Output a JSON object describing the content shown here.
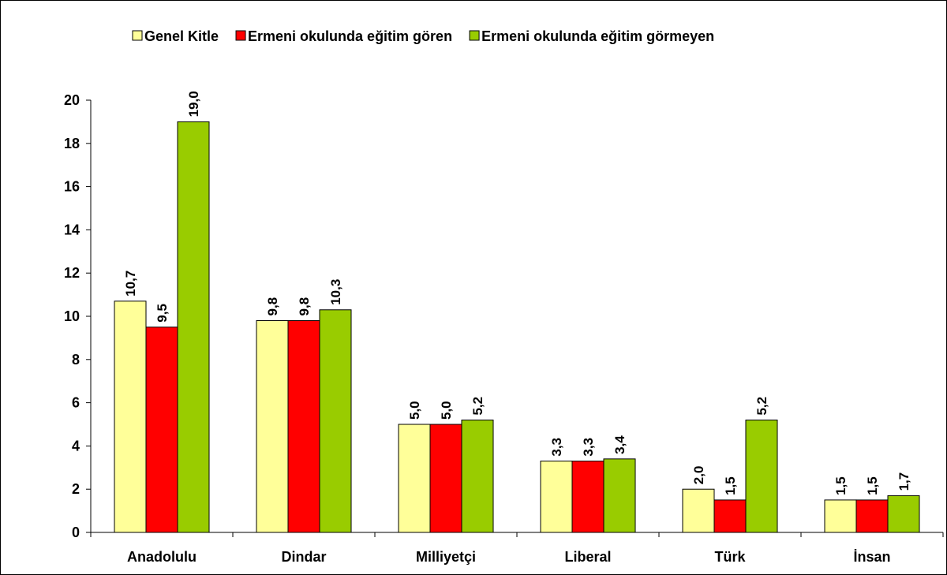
{
  "chart_data": {
    "type": "bar",
    "categories": [
      "Anadolulu",
      "Dindar",
      "Milliyetçi",
      "Liberal",
      "Türk",
      "İnsan"
    ],
    "series": [
      {
        "name": "Genel Kitle",
        "color": "#ffff99",
        "values": [
          10.7,
          9.8,
          5.0,
          3.3,
          2.0,
          1.5
        ],
        "value_labels": [
          "10,7",
          "9,8",
          "5,0",
          "3,3",
          "2,0",
          "1,5"
        ]
      },
      {
        "name": "Ermeni okulunda eğitim gören",
        "color": "#ff0000",
        "values": [
          9.5,
          9.8,
          5.0,
          3.3,
          1.5,
          1.5
        ],
        "value_labels": [
          "9,5",
          "9,8",
          "5,0",
          "3,3",
          "1,5",
          "1,5"
        ]
      },
      {
        "name": "Ermeni okulunda eğitim görmeyen",
        "color": "#99cc00",
        "values": [
          19.0,
          10.3,
          5.2,
          3.4,
          5.2,
          1.7
        ],
        "value_labels": [
          "19,0",
          "10,3",
          "5,2",
          "3,4",
          "5,2",
          "1,7"
        ]
      }
    ],
    "ylim": [
      0,
      20
    ],
    "yticks": [
      0,
      2,
      4,
      6,
      8,
      10,
      12,
      14,
      16,
      18,
      20
    ],
    "grid": false,
    "legend": "top"
  }
}
